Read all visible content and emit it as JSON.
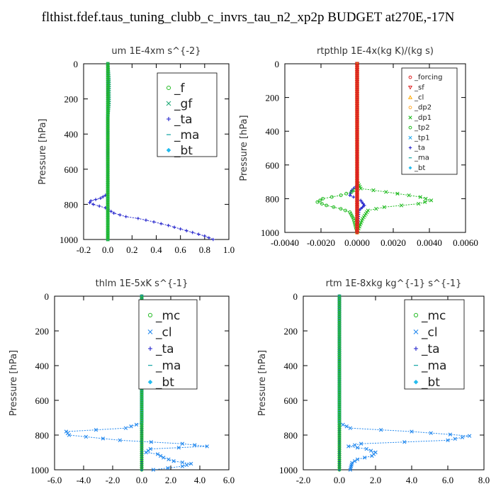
{
  "title": "flthist.fdef.taus_tuning_clubb_c_invrs_tau_n2_xp2p  BUDGET at270E,-17N",
  "chart_data": [
    {
      "type": "line",
      "title": "um   1E-4xm s^{-2}",
      "ylabel": "Pressure [hPa]",
      "xlim": [
        -0.2,
        1.0
      ],
      "ylim": [
        1000,
        0
      ],
      "xticks": [
        "-0.2",
        "0.0",
        "0.2",
        "0.4",
        "0.6",
        "0.8",
        "1.0"
      ],
      "xtick_values": [
        -0.2,
        0.0,
        0.2,
        0.4,
        0.6,
        0.8,
        1.0
      ],
      "yticks": [
        "0",
        "200",
        "400",
        "600",
        "800",
        "1000"
      ],
      "ytick_values": [
        0,
        200,
        400,
        600,
        800,
        1000
      ],
      "legend_position": "top-right",
      "legend_font": "large",
      "series": [
        {
          "name": "_f",
          "color": "#22bb22",
          "marker": "circle",
          "points": [
            [
              0,
              0
            ],
            [
              0,
              100
            ],
            [
              0,
              200
            ],
            [
              0,
              300
            ],
            [
              0,
              400
            ],
            [
              0,
              500
            ],
            [
              0,
              600
            ],
            [
              0,
              700
            ],
            [
              0,
              800
            ],
            [
              0,
              900
            ],
            [
              0,
              1000
            ]
          ]
        },
        {
          "name": "_gf",
          "color": "#22aa77",
          "marker": "x",
          "points": [
            [
              0,
              0
            ],
            [
              0.01,
              100
            ],
            [
              0.01,
              220
            ],
            [
              0,
              300
            ],
            [
              0,
              500
            ],
            [
              0,
              700
            ],
            [
              0,
              800
            ],
            [
              0,
              900
            ],
            [
              0,
              1000
            ]
          ]
        },
        {
          "name": "_ta",
          "color": "#2222cc",
          "marker": "plus",
          "points": [
            [
              0,
              0
            ],
            [
              0,
              500
            ],
            [
              0,
              740
            ],
            [
              -0.06,
              765
            ],
            [
              -0.14,
              780
            ],
            [
              -0.15,
              790
            ],
            [
              -0.12,
              800
            ],
            [
              -0.02,
              820
            ],
            [
              0.05,
              850
            ],
            [
              0.15,
              870
            ],
            [
              0.25,
              880
            ],
            [
              0.38,
              900
            ],
            [
              0.5,
              920
            ],
            [
              0.6,
              940
            ],
            [
              0.7,
              960
            ],
            [
              0.8,
              980
            ],
            [
              0.87,
              1000
            ]
          ]
        },
        {
          "name": "_ma",
          "color": "#22aaaa",
          "marker": "dash",
          "points": [
            [
              0,
              0
            ],
            [
              0,
              500
            ],
            [
              0,
              1000
            ]
          ]
        },
        {
          "name": "_bt",
          "color": "#22bbee",
          "marker": "diamond",
          "points": [
            [
              0,
              0
            ],
            [
              0,
              300
            ],
            [
              0,
              600
            ],
            [
              0,
              1000
            ]
          ]
        }
      ]
    },
    {
      "type": "line",
      "title": "rtpthlp   1E-4x(kg K)/(kg s)",
      "ylabel": "Pressure [hPa]",
      "xlim": [
        -0.004,
        0.006
      ],
      "ylim": [
        1000,
        0
      ],
      "xticks": [
        "-0.0040",
        "-0.0020",
        "0.0000",
        "0.0020",
        "0.0040",
        "0.0060"
      ],
      "xtick_values": [
        -0.004,
        -0.002,
        0,
        0.002,
        0.004,
        0.006
      ],
      "yticks": [
        "0",
        "200",
        "400",
        "600",
        "800",
        "1000"
      ],
      "ytick_values": [
        0,
        200,
        400,
        600,
        800,
        1000
      ],
      "legend_position": "top-right",
      "legend_font": "small",
      "series": [
        {
          "name": "_forcing",
          "color": "#dd2222",
          "marker": "circle",
          "points": [
            [
              0,
              0
            ],
            [
              0,
              200
            ],
            [
              0,
              400
            ],
            [
              0,
              600
            ],
            [
              0,
              800
            ],
            [
              0,
              1000
            ]
          ]
        },
        {
          "name": "_sf",
          "color": "#dd2222",
          "marker": "triangle-down",
          "points": [
            [
              0,
              0
            ],
            [
              0,
              1000
            ]
          ]
        },
        {
          "name": "_cl",
          "color": "#ffaa00",
          "marker": "triangle",
          "points": [
            [
              0,
              0
            ],
            [
              0,
              1000
            ]
          ]
        },
        {
          "name": "_dp2",
          "color": "#ffaa33",
          "marker": "circle",
          "points": [
            [
              0,
              0
            ],
            [
              0,
              1000
            ]
          ]
        },
        {
          "name": "_dp1",
          "color": "#22bb22",
          "marker": "x",
          "points": [
            [
              0,
              0
            ],
            [
              0,
              700
            ],
            [
              0.0002,
              740
            ],
            [
              0.0016,
              760
            ],
            [
              0.0035,
              790
            ],
            [
              0.0041,
              810
            ],
            [
              0.0034,
              830
            ],
            [
              0.0015,
              850
            ],
            [
              0.0006,
              870
            ],
            [
              0.0003,
              920
            ],
            [
              0,
              1000
            ]
          ]
        },
        {
          "name": "_tp2",
          "color": "#22bb22",
          "marker": "circle",
          "points": [
            [
              0,
              0
            ],
            [
              0,
              740
            ],
            [
              -0.0003,
              760
            ],
            [
              -0.0009,
              780
            ],
            [
              -0.0019,
              800
            ],
            [
              -0.0022,
              820
            ],
            [
              -0.0017,
              840
            ],
            [
              -0.0009,
              860
            ],
            [
              -0.0004,
              880
            ],
            [
              -0.0002,
              920
            ],
            [
              0,
              1000
            ]
          ]
        },
        {
          "name": "_tp1",
          "color": "#22aaee",
          "marker": "x",
          "points": [
            [
              0,
              0
            ],
            [
              0,
              1000
            ]
          ]
        },
        {
          "name": "_ta",
          "color": "#2222cc",
          "marker": "plus",
          "points": [
            [
              0,
              0
            ],
            [
              0,
              720
            ],
            [
              -0.0003,
              750
            ],
            [
              -0.0004,
              780
            ],
            [
              0.0002,
              810
            ],
            [
              0.0004,
              840
            ],
            [
              0.0001,
              870
            ],
            [
              0,
              1000
            ]
          ]
        },
        {
          "name": "_ma",
          "color": "#22aaaa",
          "marker": "dash",
          "points": [
            [
              0,
              0
            ],
            [
              0,
              1000
            ]
          ]
        },
        {
          "name": "_bt",
          "color": "#22bbee",
          "marker": "diamond",
          "points": [
            [
              0,
              0
            ],
            [
              0,
              1000
            ]
          ]
        }
      ]
    },
    {
      "type": "line",
      "title": "thlm   1E-5xK s^{-1}",
      "ylabel": "Pressure [hPa]",
      "xlim": [
        -6.0,
        6.0
      ],
      "ylim": [
        1000,
        0
      ],
      "xticks": [
        "-6.0",
        "-4.0",
        "-2.0",
        "0.0",
        "2.0",
        "4.0",
        "6.0"
      ],
      "xtick_values": [
        -6,
        -4,
        -2,
        0,
        2,
        4,
        6
      ],
      "yticks": [
        "0",
        "200",
        "400",
        "600",
        "800",
        "1000"
      ],
      "ytick_values": [
        0,
        200,
        400,
        600,
        800,
        1000
      ],
      "legend_position": "top-right",
      "legend_font": "large",
      "series": [
        {
          "name": "_mc",
          "color": "#22bb22",
          "marker": "circle",
          "points": [
            [
              0,
              0
            ],
            [
              0,
              200
            ],
            [
              0,
              400
            ],
            [
              0,
              600
            ],
            [
              0,
              800
            ],
            [
              0,
              1000
            ]
          ]
        },
        {
          "name": "_cl",
          "color": "#2288ee",
          "marker": "x",
          "points": [
            [
              0,
              0
            ],
            [
              0,
              730
            ],
            [
              -1.1,
              760
            ],
            [
              -5.2,
              780
            ],
            [
              -5.0,
              800
            ],
            [
              -1.5,
              830
            ],
            [
              2.8,
              850
            ],
            [
              4.5,
              865
            ],
            [
              0.6,
              880
            ],
            [
              0.3,
              900
            ],
            [
              1.1,
              910
            ],
            [
              1.5,
              930
            ],
            [
              2.2,
              950
            ],
            [
              3.4,
              965
            ],
            [
              2.8,
              980
            ],
            [
              0.8,
              1000
            ]
          ]
        },
        {
          "name": "_ta",
          "color": "#2222cc",
          "marker": "plus",
          "points": [
            [
              0,
              0
            ],
            [
              0,
              1000
            ]
          ]
        },
        {
          "name": "_ma",
          "color": "#22aaaa",
          "marker": "dash",
          "points": [
            [
              0,
              0
            ],
            [
              0,
              1000
            ]
          ]
        },
        {
          "name": "_bt",
          "color": "#22bbee",
          "marker": "diamond",
          "points": [
            [
              0,
              0
            ],
            [
              0,
              1000
            ]
          ]
        }
      ]
    },
    {
      "type": "line",
      "title": "rtm   1E-8xkg kg^{-1} s^{-1}",
      "ylabel": "Pressure [hPa]",
      "xlim": [
        -2.0,
        8.0
      ],
      "ylim": [
        1000,
        0
      ],
      "xticks": [
        "-2.0",
        "0.0",
        "2.0",
        "4.0",
        "6.0",
        "8.0"
      ],
      "xtick_values": [
        -2,
        0,
        2,
        4,
        6,
        8
      ],
      "yticks": [
        "0",
        "200",
        "400",
        "600",
        "800",
        "1000"
      ],
      "ytick_values": [
        0,
        200,
        400,
        600,
        800,
        1000
      ],
      "legend_position": "top-right",
      "legend_font": "large",
      "series": [
        {
          "name": "_mc",
          "color": "#22bb22",
          "marker": "circle",
          "points": [
            [
              0,
              0
            ],
            [
              0,
              200
            ],
            [
              0,
              400
            ],
            [
              0,
              600
            ],
            [
              0,
              800
            ],
            [
              0,
              1000
            ]
          ]
        },
        {
          "name": "_cl",
          "color": "#2288ee",
          "marker": "x",
          "points": [
            [
              0,
              0
            ],
            [
              0,
              730
            ],
            [
              0.6,
              760
            ],
            [
              4.0,
              780
            ],
            [
              7.2,
              805
            ],
            [
              6.0,
              830
            ],
            [
              1.2,
              850
            ],
            [
              0.5,
              865
            ],
            [
              1.5,
              880
            ],
            [
              2.0,
              900
            ],
            [
              1.8,
              920
            ],
            [
              1.0,
              940
            ],
            [
              0.7,
              960
            ],
            [
              0.6,
              1000
            ]
          ]
        },
        {
          "name": "_ta",
          "color": "#2222cc",
          "marker": "plus",
          "points": [
            [
              0,
              0
            ],
            [
              0,
              1000
            ]
          ]
        },
        {
          "name": "_ma",
          "color": "#22aaaa",
          "marker": "dash",
          "points": [
            [
              0,
              0
            ],
            [
              0,
              1000
            ]
          ]
        },
        {
          "name": "_bt",
          "color": "#22bbee",
          "marker": "diamond",
          "points": [
            [
              0,
              0
            ],
            [
              0,
              1000
            ]
          ]
        }
      ]
    }
  ]
}
